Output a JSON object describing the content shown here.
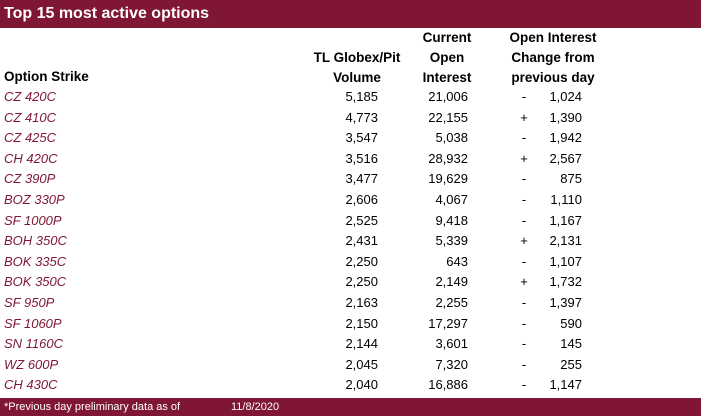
{
  "title": "Top 15 most active options",
  "headers": {
    "strike": "Option Strike",
    "vol_line1": "TL Globex/Pit",
    "vol_line2": "Volume",
    "oi_line1": "Current",
    "oi_line2": "Open",
    "oi_line3": "Interest",
    "chg_line1": "Open Interest",
    "chg_line2": "Change from",
    "chg_line3": "previous day"
  },
  "rows": [
    {
      "strike": "CZ 420C",
      "volume": "5,185",
      "oi": "21,006",
      "sign": "-",
      "change": "1,024"
    },
    {
      "strike": "CZ 410C",
      "volume": "4,773",
      "oi": "22,155",
      "sign": "+",
      "change": "1,390"
    },
    {
      "strike": "CZ 425C",
      "volume": "3,547",
      "oi": "5,038",
      "sign": "-",
      "change": "1,942"
    },
    {
      "strike": "CH 420C",
      "volume": "3,516",
      "oi": "28,932",
      "sign": "+",
      "change": "2,567"
    },
    {
      "strike": "CZ 390P",
      "volume": "3,477",
      "oi": "19,629",
      "sign": "-",
      "change": "875"
    },
    {
      "strike": "BOZ 330P",
      "volume": "2,606",
      "oi": "4,067",
      "sign": "-",
      "change": "1,110"
    },
    {
      "strike": "SF 1000P",
      "volume": "2,525",
      "oi": "9,418",
      "sign": "-",
      "change": "1,167"
    },
    {
      "strike": "BOH 350C",
      "volume": "2,431",
      "oi": "5,339",
      "sign": "+",
      "change": "2,131"
    },
    {
      "strike": "BOK 335C",
      "volume": "2,250",
      "oi": "643",
      "sign": "-",
      "change": "1,107"
    },
    {
      "strike": "BOK 350C",
      "volume": "2,250",
      "oi": "2,149",
      "sign": "+",
      "change": "1,732"
    },
    {
      "strike": "SF 950P",
      "volume": "2,163",
      "oi": "2,255",
      "sign": "-",
      "change": "1,397"
    },
    {
      "strike": "SF 1060P",
      "volume": "2,150",
      "oi": "17,297",
      "sign": "-",
      "change": "590"
    },
    {
      "strike": "SN 1160C",
      "volume": "2,144",
      "oi": "3,601",
      "sign": "-",
      "change": "145"
    },
    {
      "strike": "WZ 600P",
      "volume": "2,045",
      "oi": "7,320",
      "sign": "-",
      "change": "255"
    },
    {
      "strike": "CH 430C",
      "volume": "2,040",
      "oi": "16,886",
      "sign": "-",
      "change": "1,147"
    }
  ],
  "footer": {
    "note": "*Previous day preliminary data as of",
    "date": "11/8/2020"
  },
  "colors": {
    "brand": "#7f1734",
    "header_text": "#ffffff"
  }
}
